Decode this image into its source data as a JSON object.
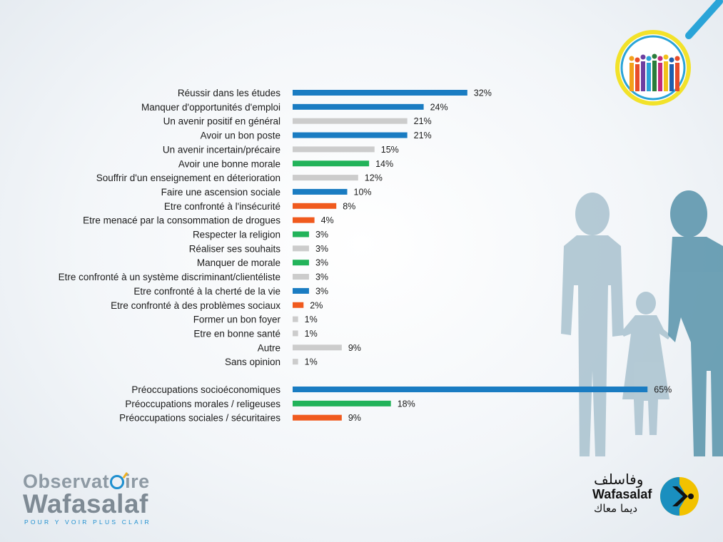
{
  "chart_data": {
    "type": "bar",
    "orientation": "horizontal",
    "value_suffix": "%",
    "colors": {
      "blue": "#1a7cc2",
      "gray": "#cccccc",
      "green": "#22b35a",
      "orange": "#f05a1e"
    },
    "groups": [
      {
        "categories": [
          "Réussir dans les études",
          "Manquer d'opportunités d'emploi",
          "Un avenir positif en général",
          "Avoir un bon poste",
          "Un avenir incertain/précaire",
          "Avoir une bonne morale",
          "Souffrir d'un enseignement en déterioration",
          "Faire une ascension sociale",
          "Etre confronté à l'insécurité",
          "Etre menacé par la consommation de drogues",
          "Respecter la religion",
          "Réaliser ses souhaits",
          "Manquer de morale",
          "Etre confronté à un système discriminant/clientéliste",
          "Etre confronté à la cherté de la vie",
          "Etre confronté à des problèmes sociaux",
          "Former un bon foyer",
          "Etre en bonne santé",
          "Autre",
          "Sans opinion"
        ],
        "values": [
          32,
          24,
          21,
          21,
          15,
          14,
          12,
          10,
          8,
          4,
          3,
          3,
          3,
          3,
          3,
          2,
          1,
          1,
          9,
          1
        ],
        "value_labels": [
          "32%",
          "24%",
          "21%",
          "21%",
          "15%",
          "14%",
          "12%",
          "10%",
          "8%",
          "4%",
          "3%",
          "3%",
          "3%",
          "3%",
          "3%",
          "2%",
          "1%",
          "1%",
          "9%",
          "1%"
        ],
        "bar_colors": [
          "blue",
          "blue",
          "gray",
          "blue",
          "gray",
          "green",
          "gray",
          "blue",
          "orange",
          "orange",
          "green",
          "gray",
          "green",
          "gray",
          "blue",
          "orange",
          "gray",
          "gray",
          "gray",
          "gray"
        ]
      },
      {
        "categories": [
          "Préoccupations socioéconomiques",
          "Préoccupations morales / religeuses",
          "Préoccupations sociales / sécuritaires"
        ],
        "values": [
          65,
          18,
          9
        ],
        "value_labels": [
          "65%",
          "18%",
          "9%"
        ],
        "bar_colors": [
          "blue",
          "green",
          "orange"
        ]
      }
    ]
  },
  "logos": {
    "observatoire": {
      "line1_a": "Observat",
      "line1_b": "ire",
      "line2": "Wafasalaf",
      "tagline": "POUR Y VOIR PLUS CLAIR"
    },
    "wafasalaf": {
      "arabic_top": "وفاسلف",
      "name": "Wafasalaf",
      "arabic_bottom": "ديما معاك"
    }
  }
}
